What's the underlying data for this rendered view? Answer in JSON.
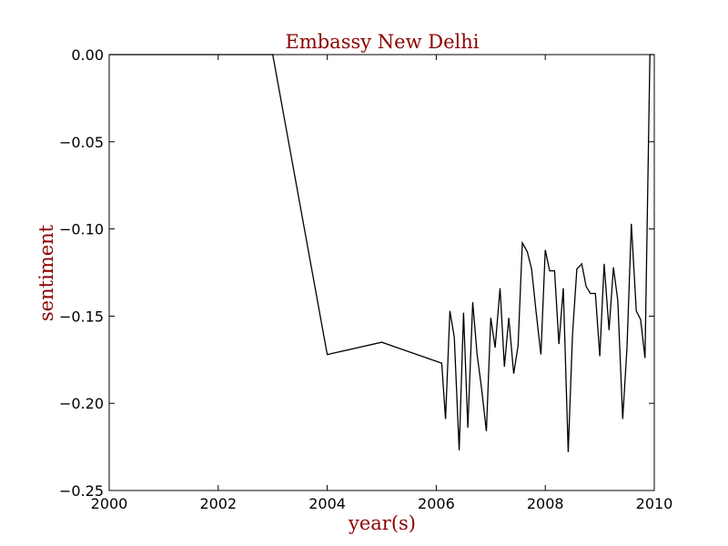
{
  "chart_data": {
    "type": "line",
    "title": "Embassy New Delhi",
    "xlabel": "year(s)",
    "ylabel": "sentiment",
    "xlim": [
      2000,
      2010
    ],
    "ylim": [
      -0.25,
      0.0
    ],
    "grid": false,
    "line_color": "#000000",
    "text_color": "#8b0000",
    "x_ticks": [
      2000,
      2002,
      2004,
      2006,
      2008,
      2010
    ],
    "x_tick_labels": [
      "2000",
      "2002",
      "2004",
      "2006",
      "2008",
      "2010"
    ],
    "y_ticks": [
      0.0,
      -0.05,
      -0.1,
      -0.15,
      -0.2,
      -0.25
    ],
    "y_tick_labels": [
      "0.00",
      "−0.05",
      "−0.10",
      "−0.15",
      "−0.20",
      "−0.25"
    ],
    "series": [
      {
        "points": [
          [
            2000.0,
            0.0
          ],
          [
            2003.0,
            0.0
          ],
          [
            2004.0,
            -0.172
          ],
          [
            2005.0,
            -0.165
          ],
          [
            2006.1,
            -0.177
          ],
          [
            2006.17,
            -0.209
          ],
          [
            2006.25,
            -0.147
          ],
          [
            2006.33,
            -0.162
          ],
          [
            2006.42,
            -0.227
          ],
          [
            2006.5,
            -0.148
          ],
          [
            2006.58,
            -0.214
          ],
          [
            2006.67,
            -0.142
          ],
          [
            2006.75,
            -0.172
          ],
          [
            2006.83,
            -0.191
          ],
          [
            2006.92,
            -0.216
          ],
          [
            2007.0,
            -0.151
          ],
          [
            2007.08,
            -0.168
          ],
          [
            2007.17,
            -0.134
          ],
          [
            2007.25,
            -0.179
          ],
          [
            2007.33,
            -0.151
          ],
          [
            2007.42,
            -0.183
          ],
          [
            2007.5,
            -0.167
          ],
          [
            2007.58,
            -0.108
          ],
          [
            2007.67,
            -0.113
          ],
          [
            2007.75,
            -0.123
          ],
          [
            2007.83,
            -0.147
          ],
          [
            2007.92,
            -0.172
          ],
          [
            2008.0,
            -0.112
          ],
          [
            2008.08,
            -0.124
          ],
          [
            2008.17,
            -0.124
          ],
          [
            2008.25,
            -0.166
          ],
          [
            2008.33,
            -0.134
          ],
          [
            2008.42,
            -0.228
          ],
          [
            2008.5,
            -0.161
          ],
          [
            2008.58,
            -0.123
          ],
          [
            2008.67,
            -0.12
          ],
          [
            2008.75,
            -0.133
          ],
          [
            2008.83,
            -0.137
          ],
          [
            2008.92,
            -0.137
          ],
          [
            2009.0,
            -0.173
          ],
          [
            2009.08,
            -0.12
          ],
          [
            2009.17,
            -0.158
          ],
          [
            2009.25,
            -0.122
          ],
          [
            2009.33,
            -0.141
          ],
          [
            2009.42,
            -0.209
          ],
          [
            2009.5,
            -0.168
          ],
          [
            2009.58,
            -0.097
          ],
          [
            2009.67,
            -0.147
          ],
          [
            2009.75,
            -0.152
          ],
          [
            2009.83,
            -0.174
          ],
          [
            2009.92,
            0.0
          ],
          [
            2010.0,
            0.0
          ]
        ]
      }
    ]
  }
}
